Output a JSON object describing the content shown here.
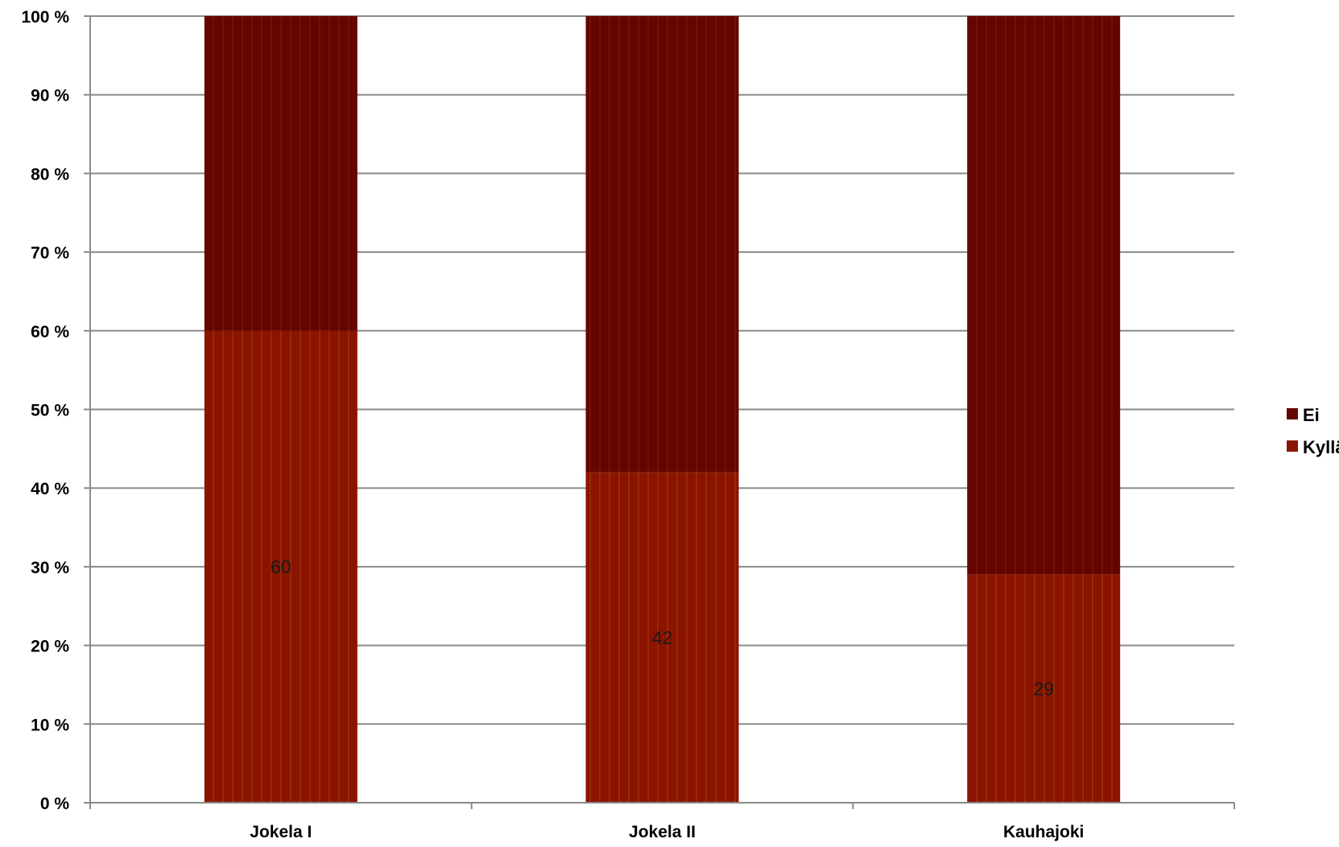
{
  "chart_data": {
    "type": "bar",
    "stacked": true,
    "percent_stacked": true,
    "categories": [
      "Jokela I",
      "Jokela II",
      "Kauhajoki"
    ],
    "series": [
      {
        "name": "Kyllä",
        "values": [
          60,
          42,
          29
        ],
        "color": "#8b1400"
      },
      {
        "name": "Ei",
        "values": [
          40,
          58,
          71
        ],
        "color": "#650500"
      }
    ],
    "data_labels": [
      "60",
      "42",
      "29"
    ],
    "ylim": [
      0,
      100
    ],
    "y_ticks": [
      0,
      10,
      20,
      30,
      40,
      50,
      60,
      70,
      80,
      90,
      100
    ],
    "y_tick_labels": [
      "0 %",
      "10 %",
      "20 %",
      "30 %",
      "40 %",
      "50 %",
      "60 %",
      "70 %",
      "80 %",
      "90 %",
      "100 %"
    ],
    "grid": true,
    "legend": {
      "position": "right",
      "entries": [
        "Ei",
        "Kyllä"
      ]
    }
  },
  "colors": {
    "kylla": "#8b1400",
    "ei": "#650500",
    "gridline": "#8a8a8a",
    "axis": "#8a8a8a"
  }
}
